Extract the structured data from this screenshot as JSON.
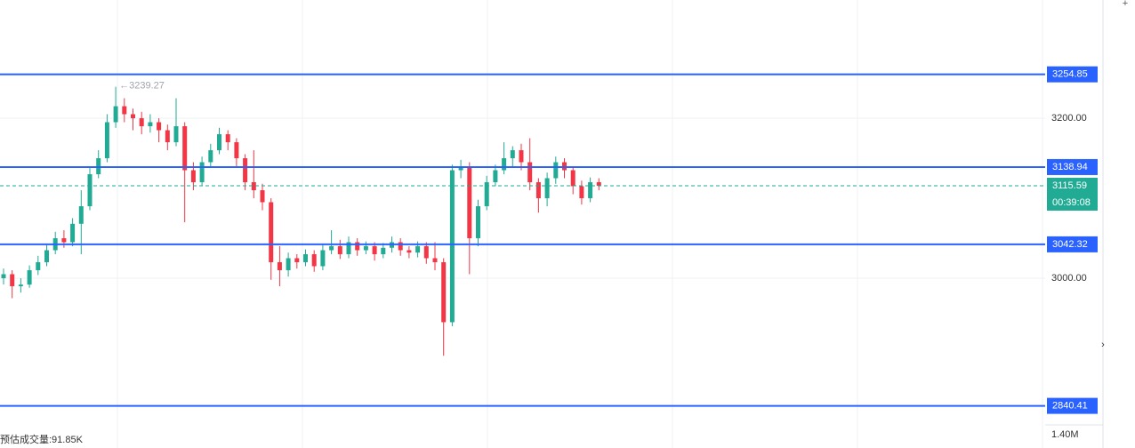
{
  "chart_data": {
    "type": "candlestick",
    "up_color": "#22ab94",
    "down_color": "#f23645",
    "level_color": "#2962ff",
    "price_color": "#22ab94",
    "grid": true,
    "ylim": [
      2814.4,
      3347.8
    ],
    "yticks": [
      {
        "value": 3000,
        "label": "3000.00"
      },
      {
        "value": 3200,
        "label": "3200.00"
      }
    ],
    "levels": [
      3254.85,
      3138.94,
      3042.32,
      2840.41
    ],
    "high_label": "←3239.27",
    "countdown": "00:39:08",
    "volume_label": "预估成交量:91.85K",
    "volume_axis_label": "1.40M",
    "open": [
      3000,
      3005,
      2990,
      2992,
      3010,
      3020,
      3035,
      3050,
      3045,
      3068,
      3090,
      3130,
      3150,
      3195,
      3215,
      3205,
      3200,
      3190,
      3195,
      3185,
      3170,
      3190,
      3135,
      3120,
      3145,
      3160,
      3180,
      3170,
      3150,
      3120,
      3110,
      3095,
      3020,
      3010,
      3025,
      3020,
      3030,
      3015,
      3035,
      3040,
      3030,
      3045,
      3035,
      3040,
      3030,
      3038,
      3045,
      3035,
      3032,
      3040,
      3025,
      3020,
      2945,
      3135,
      3140,
      3050,
      3090,
      3120,
      3135,
      3150,
      3160,
      3145,
      3120,
      3100,
      3125,
      3145,
      3135,
      3115,
      3100,
      3120
    ],
    "high": [
      3012,
      3010,
      3000,
      3016,
      3028,
      3042,
      3058,
      3060,
      3075,
      3110,
      3140,
      3160,
      3205,
      3239.27,
      3225,
      3212,
      3208,
      3205,
      3200,
      3192,
      3225,
      3195,
      3145,
      3152,
      3168,
      3188,
      3185,
      3175,
      3155,
      3160,
      3118,
      3100,
      3040,
      3032,
      3030,
      3036,
      3035,
      3042,
      3060,
      3048,
      3052,
      3050,
      3046,
      3045,
      3044,
      3052,
      3050,
      3040,
      3046,
      3045,
      3045,
      3025,
      3142,
      3148,
      3145,
      3098,
      3128,
      3142,
      3170,
      3165,
      3168,
      3175,
      3125,
      3132,
      3152,
      3150,
      3140,
      3122,
      3126,
      3125
    ],
    "low": [
      2992,
      2975,
      2982,
      2988,
      3004,
      3015,
      3030,
      3038,
      3040,
      3030,
      3085,
      3125,
      3145,
      3188,
      3195,
      3185,
      3180,
      3182,
      3170,
      3160,
      3165,
      3070,
      3110,
      3115,
      3140,
      3155,
      3160,
      3140,
      3110,
      3100,
      3085,
      2998,
      2990,
      3002,
      3012,
      3015,
      3008,
      3010,
      3030,
      3024,
      3025,
      3028,
      3030,
      3022,
      3025,
      3032,
      3028,
      3025,
      3026,
      3018,
      3010,
      2903,
      2940,
      3125,
      3005,
      3040,
      3085,
      3115,
      3130,
      3140,
      3135,
      3110,
      3082,
      3090,
      3118,
      3125,
      3105,
      3092,
      3095,
      3110
    ],
    "close": [
      3005,
      2990,
      2992,
      3010,
      3020,
      3035,
      3050,
      3045,
      3068,
      3090,
      3130,
      3150,
      3195,
      3215,
      3205,
      3200,
      3190,
      3195,
      3185,
      3170,
      3190,
      3135,
      3120,
      3145,
      3160,
      3180,
      3170,
      3150,
      3120,
      3110,
      3095,
      3020,
      3010,
      3025,
      3020,
      3030,
      3015,
      3035,
      3040,
      3030,
      3045,
      3035,
      3040,
      3030,
      3038,
      3045,
      3035,
      3032,
      3040,
      3025,
      3020,
      2945,
      3135,
      3140,
      3050,
      3090,
      3120,
      3135,
      3150,
      3160,
      3145,
      3120,
      3100,
      3125,
      3145,
      3135,
      3115,
      3100,
      3120,
      3115.59
    ]
  }
}
